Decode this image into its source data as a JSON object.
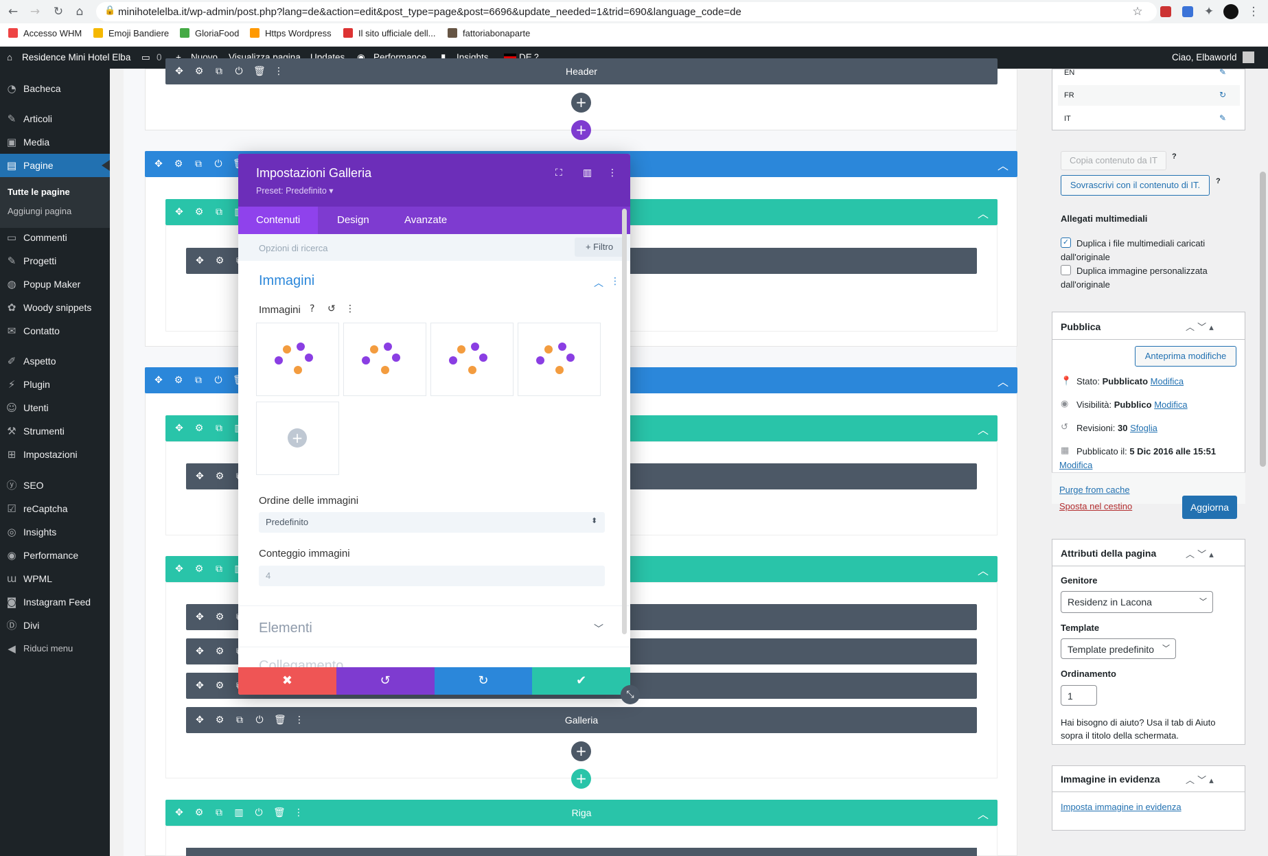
{
  "browser": {
    "url": "minihotelelba.it/wp-admin/post.php?lang=de&action=edit&post_type=page&post=6696&update_needed=1&trid=690&language_code=de",
    "bookmarks": [
      "Accesso WHM",
      "Emoji Bandiere",
      "GloriaFood",
      "Https Wordpress",
      "Il sito ufficiale dell...",
      "fattoriabonaparte"
    ]
  },
  "adminbar": {
    "site": "Residence Mini Hotel Elba",
    "comments": "0",
    "new": "Nuovo",
    "view": "Visualizza pagina",
    "updates": "Updates",
    "performance": "Performance",
    "insights": "Insights",
    "lang": "DE",
    "greeting": "Ciao, Elbaworld"
  },
  "sidebar": {
    "items": [
      "Bacheca",
      "Articoli",
      "Media",
      "Pagine",
      "Commenti",
      "Progetti",
      "Popup Maker",
      "Woody snippets",
      "Contatto",
      "Aspetto",
      "Plugin",
      "Utenti",
      "Strumenti",
      "Impostazioni",
      "SEO",
      "reCaptcha",
      "Insights",
      "Performance",
      "WPML",
      "Instagram Feed",
      "Divi",
      "Riduci menu"
    ],
    "sub": [
      "Tutte le pagine",
      "Aggiungi pagina"
    ]
  },
  "builder": {
    "header_label": "Header",
    "gallery_label": "Galleria",
    "row_label": "Riga"
  },
  "modal": {
    "title": "Impostazioni Galleria",
    "preset": "Preset: Predefinito ▾",
    "tabs": [
      "Contenuti",
      "Design",
      "Avanzate"
    ],
    "search_placeholder": "Opzioni di ricerca",
    "filter": "Filtro",
    "section_images": "Immagini",
    "images_label": "Immagini",
    "order_label": "Ordine delle immagini",
    "order_value": "Predefinito",
    "count_label": "Conteggio immagini",
    "count_value": "4",
    "section_elements": "Elementi",
    "section_link": "Collegamento"
  },
  "right": {
    "languages": [
      "EN",
      "FR",
      "IT"
    ],
    "copy_btn": "Copia contenuto da IT",
    "overwrite_btn": "Sovrascrivi con il contenuto di IT.",
    "media_title": "Allegati multimediali",
    "dup_files": "Duplica i file multimediali caricati",
    "dup_files2": "dall'originale",
    "dup_image": "Duplica immagine personalizzata",
    "dup_image2": "dall'originale",
    "publish_title": "Pubblica",
    "preview_btn": "Anteprima modifiche",
    "status_label": "Stato:",
    "status_value": "Pubblicato",
    "visibility_label": "Visibilità:",
    "visibility_value": "Pubblico",
    "revisions_label": "Revisioni:",
    "revisions_value": "30",
    "browse": "Sfoglia",
    "edit": "Modifica",
    "published_label": "Pubblicato il:",
    "published_value": "5 Dic 2016 alle 15:51",
    "purge": "Purge from cache",
    "trash": "Sposta nel cestino",
    "update_btn": "Aggiorna",
    "attrs_title": "Attributi della pagina",
    "parent_label": "Genitore",
    "parent_value": "Residenz in Lacona",
    "template_label": "Template",
    "template_value": "Template predefinito",
    "order_label": "Ordinamento",
    "order_value": "1",
    "help1": "Hai bisogno di aiuto? Usa il tab di Aiuto",
    "help2": "sopra il titolo della schermata.",
    "featured_title": "Immagine in evidenza",
    "featured_link": "Imposta immagine in evidenza"
  },
  "colors": {
    "accent": "#2271b1",
    "divi_purple": "#7e3bd0",
    "divi_teal": "#29c4a9",
    "divi_blue": "#2b87da"
  }
}
